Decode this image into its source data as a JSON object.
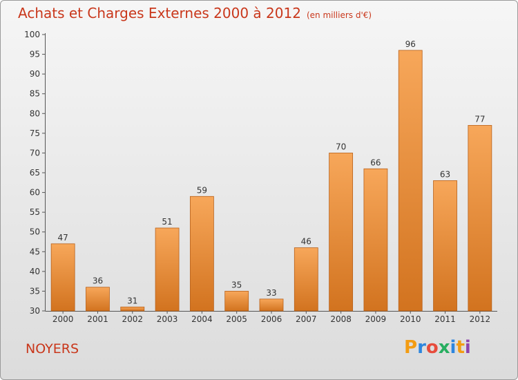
{
  "header": {
    "title": "Achats et Charges Externes 2000 à 2012",
    "subtitle": "(en milliers d'€)"
  },
  "footer": {
    "city": "NOYERS",
    "logo": [
      "P",
      "r",
      "o",
      "x",
      "i",
      "t",
      "i"
    ],
    "logo_colors": [
      "#f39c12",
      "#2e86de",
      "#e74c3c",
      "#27ae60",
      "#2e86de",
      "#f39c12",
      "#8e44ad"
    ]
  },
  "chart_data": {
    "type": "bar",
    "categories": [
      "2000",
      "2001",
      "2002",
      "2003",
      "2004",
      "2005",
      "2006",
      "2007",
      "2008",
      "2009",
      "2010",
      "2011",
      "2012"
    ],
    "values": [
      47,
      36,
      31,
      51,
      59,
      35,
      33,
      46,
      70,
      66,
      96,
      63,
      77
    ],
    "data_labels": [
      "47",
      "36",
      "31",
      "51",
      "59",
      "35",
      "33",
      "46",
      "70",
      "66",
      "96",
      "63",
      "77"
    ],
    "yticks": [
      "30",
      "35",
      "40",
      "45",
      "50",
      "55",
      "60",
      "65",
      "70",
      "75",
      "80",
      "85",
      "90",
      "95",
      "100"
    ],
    "ylim": [
      30,
      100
    ],
    "xlabel": "",
    "ylabel": "",
    "grid": false,
    "legend": "none",
    "bar_color_top": "#f7a75a",
    "bar_color_bottom": "#d2731f",
    "bar_edge": "#b8611b"
  }
}
